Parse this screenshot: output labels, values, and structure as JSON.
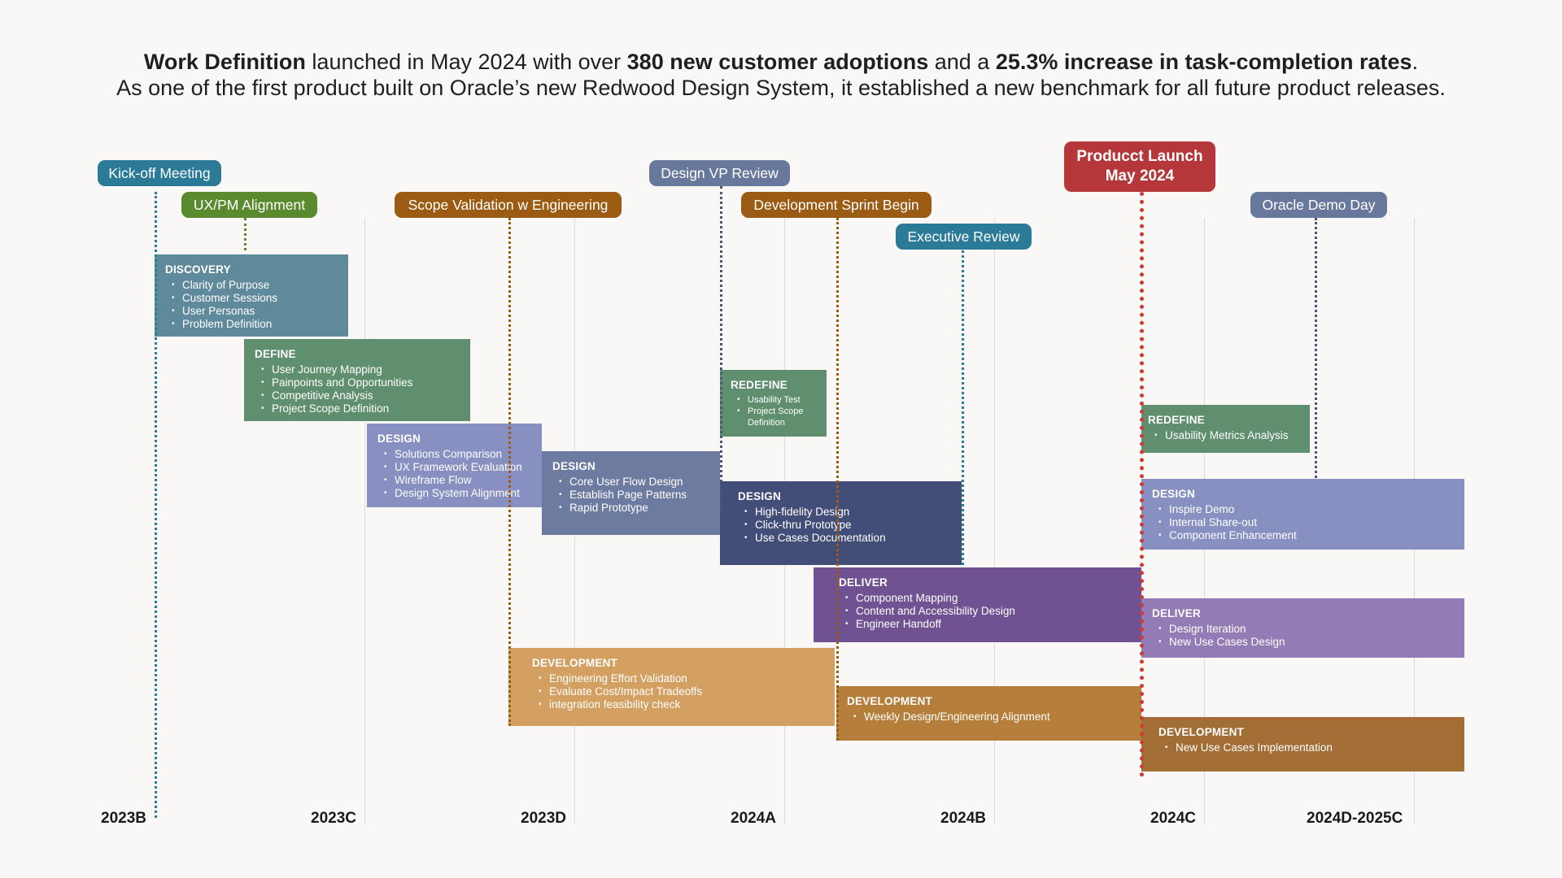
{
  "headline": {
    "l1": [
      "Work Definition",
      " launched in May 2024 with over ",
      "380 new customer adoptions",
      " and a ",
      "25.3% increase in task-completion rates",
      "."
    ],
    "l2": "As one of the first product built on Oracle’s new Redwood Design System, it established a new benchmark for all future product releases."
  },
  "axis": [
    "2023B",
    "2023C",
    "2023D",
    "2024A",
    "2024B",
    "2024C",
    "2024D-2025C"
  ],
  "milestones": {
    "kickoff": "Kick-off Meeting",
    "uxpm": "UX/PM Alignment",
    "scope": "Scope Validation w Engineering",
    "vp": "Design VP Review",
    "sprint": "Development Sprint Begin",
    "exec": "Executive Review",
    "launch": [
      "Producct Launch",
      "May 2024"
    ],
    "demo": "Oracle Demo Day"
  },
  "colors": {
    "blue_teal": "#2b7a98",
    "green_ms": "#5a8a2e",
    "orange_ms": "#9c5b12",
    "slate_ms": "#68779c",
    "launch": "#b5373a",
    "discovery": "#5f8a9c",
    "define": "#5f8f6e",
    "design_light": "#8790c0",
    "design_mid": "#6e7ba1",
    "design_dark": "#434e78",
    "deliver_dark": "#705293",
    "deliver_light": "#937bb6",
    "dev_light": "#d4a062",
    "dev_mid": "#b67e3b",
    "dev_dark": "#a26e36"
  },
  "phases": {
    "discovery": {
      "title": "DISCOVERY",
      "items": [
        "Clarity of Purpose",
        "Customer Sessions",
        "User Personas",
        "Problem Definition"
      ]
    },
    "define": {
      "title": "DEFINE",
      "items": [
        "User Journey Mapping",
        "Painpoints and Opportunities",
        "Competitive Analysis",
        "Project Scope Definition"
      ]
    },
    "design1": {
      "title": "DESIGN",
      "items": [
        "Solutions Comparison",
        "UX Framework Evaluation",
        "Wireframe Flow",
        "Design System Alignment"
      ]
    },
    "design2": {
      "title": "DESIGN",
      "items": [
        "Core User Flow Design",
        "Establish Page Patterns",
        "Rapid Prototype"
      ]
    },
    "redefine1": {
      "title": "REDEFINE",
      "items": [
        "Usability Test",
        "Project Scope Definition"
      ]
    },
    "design3": {
      "title": "DESIGN",
      "items": [
        "High-fidelity Design",
        "Click-thru Prototype",
        "Use Cases Documentation"
      ]
    },
    "deliver1": {
      "title": "DELIVER",
      "items": [
        "Component Mapping",
        "Content and Accessibility Design",
        "Engineer Handoff"
      ]
    },
    "dev1": {
      "title": "DEVELOPMENT",
      "items": [
        "Engineering Effort Validation",
        "Evaluate Cost/Impact Tradeoffs",
        "integration feasibility check"
      ]
    },
    "dev2": {
      "title": "DEVELOPMENT",
      "items": [
        "Weekly Design/Engineering Alignment"
      ]
    },
    "redefine2": {
      "title": "REDEFINE",
      "items": [
        "Usability Metrics Analysis"
      ]
    },
    "design4": {
      "title": "DESIGN",
      "items": [
        "Inspire Demo",
        "Internal Share-out",
        "Component Enhancement"
      ]
    },
    "deliver2": {
      "title": "DELIVER",
      "items": [
        "Design Iteration",
        "New Use Cases Design"
      ]
    },
    "dev3": {
      "title": "DEVELOPMENT",
      "items": [
        "New Use Cases Implementation"
      ]
    }
  }
}
